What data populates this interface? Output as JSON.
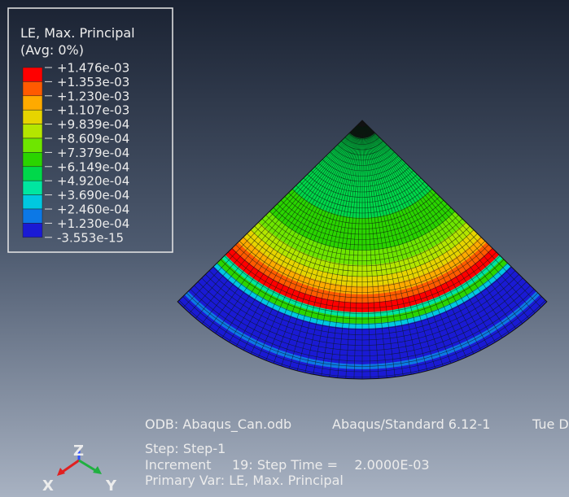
{
  "legend": {
    "title": "LE, Max. Principal",
    "subtitle": "(Avg: 0%)",
    "levels": [
      "+1.476e-03",
      "+1.353e-03",
      "+1.230e-03",
      "+1.107e-03",
      "+9.839e-04",
      "+8.609e-04",
      "+7.379e-04",
      "+6.149e-04",
      "+4.920e-04",
      "+3.690e-04",
      "+2.460e-04",
      "+1.230e-04",
      "-3.553e-15"
    ],
    "colors": [
      "#ff0000",
      "#ff5a00",
      "#ffaa00",
      "#e6d400",
      "#b4e600",
      "#6ee600",
      "#2ad400",
      "#00d84a",
      "#00e6a0",
      "#00c8e0",
      "#0c78e6",
      "#1a1ad4"
    ]
  },
  "info": {
    "odb": "ODB: Abaqus_Can.odb",
    "solver": "Abaqus/Standard 6.12-1",
    "date": "Tue D",
    "step": "Step: Step-1",
    "increment": "Increment     19: Step Time =    2.0000E-03",
    "primary_var": "Primary Var: LE, Max. Principal"
  },
  "triad": {
    "z": "Z",
    "x": "X",
    "y": "Y"
  }
}
